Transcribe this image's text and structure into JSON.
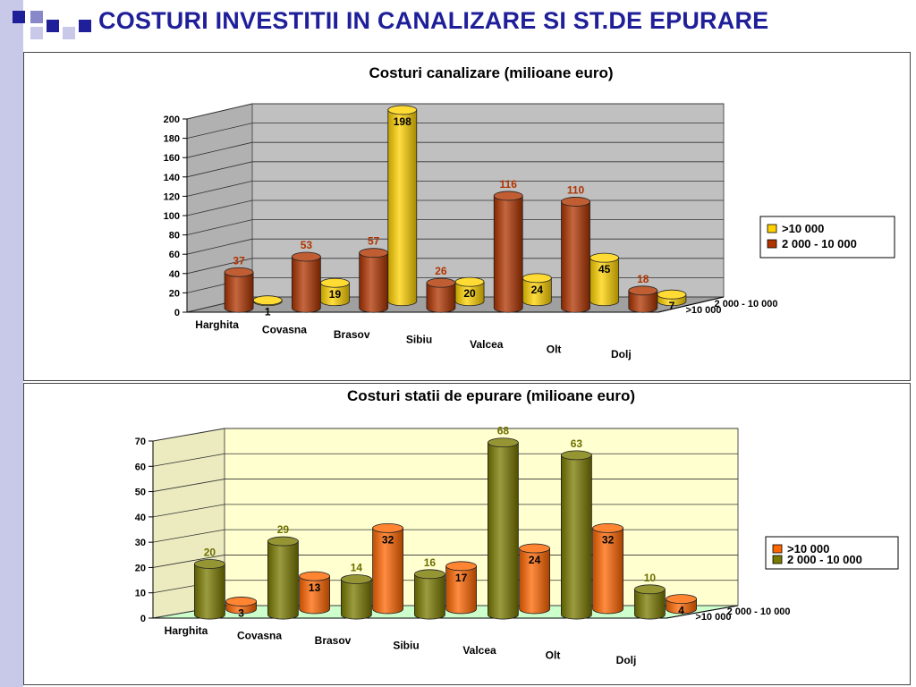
{
  "slide": {
    "title": "COSTURI INVESTITII IN CANALIZARE SI ST.DE EPURARE"
  },
  "colors": {
    "title": "#1f1f9a",
    "accent_strip": "#c8c8e8",
    "deco_dark": "#1f1f9a",
    "deco_light": "#8888c8"
  },
  "chart_data": [
    {
      "type": "bar",
      "subtype": "3d-cylinder",
      "title": "Costuri canalizare (milioane euro)",
      "categories": [
        "Harghita",
        "Covasna",
        "Brasov",
        "Sibiu",
        "Valcea",
        "Olt",
        "Dolj"
      ],
      "series": [
        {
          "name": ">10 000",
          "values": [
            1,
            19,
            198,
            20,
            24,
            45,
            7
          ],
          "color": "#ffd200"
        },
        {
          "name": "2 000 - 10 000",
          "values": [
            37,
            53,
            57,
            26,
            116,
            110,
            18
          ],
          "color": "#b03400"
        }
      ],
      "ylim": [
        0,
        200
      ],
      "yticks": [
        0,
        20,
        40,
        60,
        80,
        100,
        120,
        140,
        160,
        180,
        200
      ],
      "depth_labels": [
        "2 000 - 10 000",
        ">10 000"
      ],
      "wall_color": "#c0c0c0",
      "floor_color": "#a0a0a0",
      "grid": true,
      "legend": "right"
    },
    {
      "type": "bar",
      "subtype": "3d-cylinder",
      "title": "Costuri statii de epurare (milioane euro)",
      "categories": [
        "Harghita",
        "Covasna",
        "Brasov",
        "Sibiu",
        "Valcea",
        "Olt",
        "Dolj"
      ],
      "series": [
        {
          "name": ">10 000",
          "values": [
            3,
            13,
            32,
            17,
            24,
            32,
            4
          ],
          "color": "#ff6600"
        },
        {
          "name": "2 000 - 10 000",
          "values": [
            20,
            29,
            14,
            16,
            68,
            63,
            10
          ],
          "color": "#7a7a00"
        }
      ],
      "ylim": [
        0,
        70
      ],
      "yticks": [
        0,
        10,
        20,
        30,
        40,
        50,
        60,
        70
      ],
      "depth_labels": [
        "2 000 - 10 000",
        ">10 000"
      ],
      "wall_color": "#ffffd0",
      "floor_color": "#ccffcc",
      "grid": true,
      "legend": "right"
    }
  ]
}
